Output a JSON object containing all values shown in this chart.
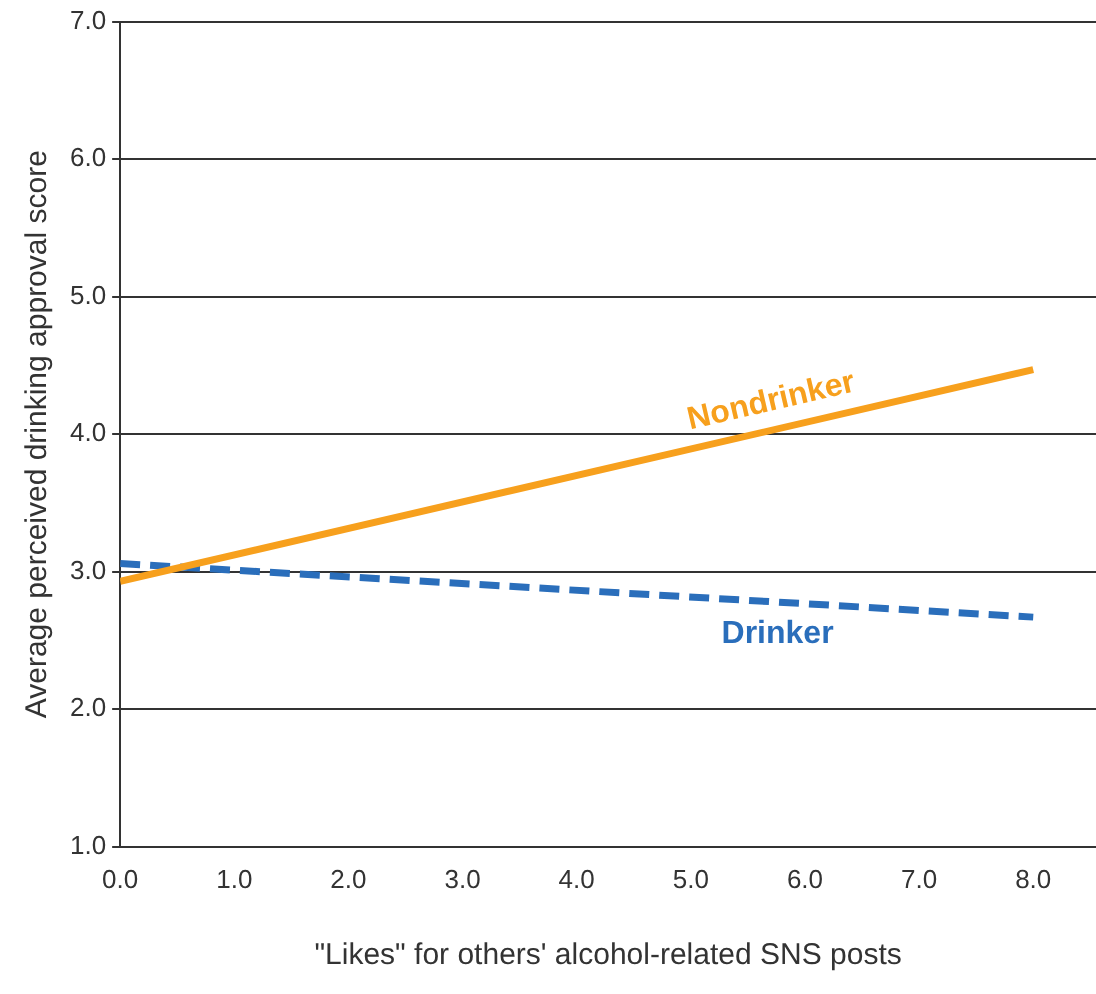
{
  "chart_data": {
    "type": "line",
    "xlabel": "\"Likes\" for others' alcohol-related SNS posts",
    "ylabel": "Average perceived drinking approval score",
    "x": [
      0,
      8
    ],
    "xlim": [
      0,
      8.55
    ],
    "xticks": [
      {
        "value": 0,
        "label": "0.0"
      },
      {
        "value": 1,
        "label": "1.0"
      },
      {
        "value": 2,
        "label": "2.0"
      },
      {
        "value": 3,
        "label": "3.0"
      },
      {
        "value": 4,
        "label": "4.0"
      },
      {
        "value": 5,
        "label": "5.0"
      },
      {
        "value": 6,
        "label": "6.0"
      },
      {
        "value": 7,
        "label": "7.0"
      },
      {
        "value": 8,
        "label": "8.0"
      }
    ],
    "ylim": [
      1,
      7
    ],
    "yticks": [
      {
        "value": 1,
        "label": "1.0"
      },
      {
        "value": 2,
        "label": "2.0"
      },
      {
        "value": 3,
        "label": "3.0"
      },
      {
        "value": 4,
        "label": "4.0"
      },
      {
        "value": 5,
        "label": "5.0"
      },
      {
        "value": 6,
        "label": "6.0"
      },
      {
        "value": 7,
        "label": "7.0"
      }
    ],
    "grid": "y",
    "legend": false,
    "marker": "none",
    "series": [
      {
        "name": "Nondrinker",
        "color": "#f7a01d",
        "values": [
          2.93,
          4.47
        ],
        "line_style": "solid"
      },
      {
        "name": "Drinker",
        "color": "#2a6ebb",
        "values": [
          3.06,
          2.67
        ],
        "line_style": "dashed"
      }
    ]
  }
}
